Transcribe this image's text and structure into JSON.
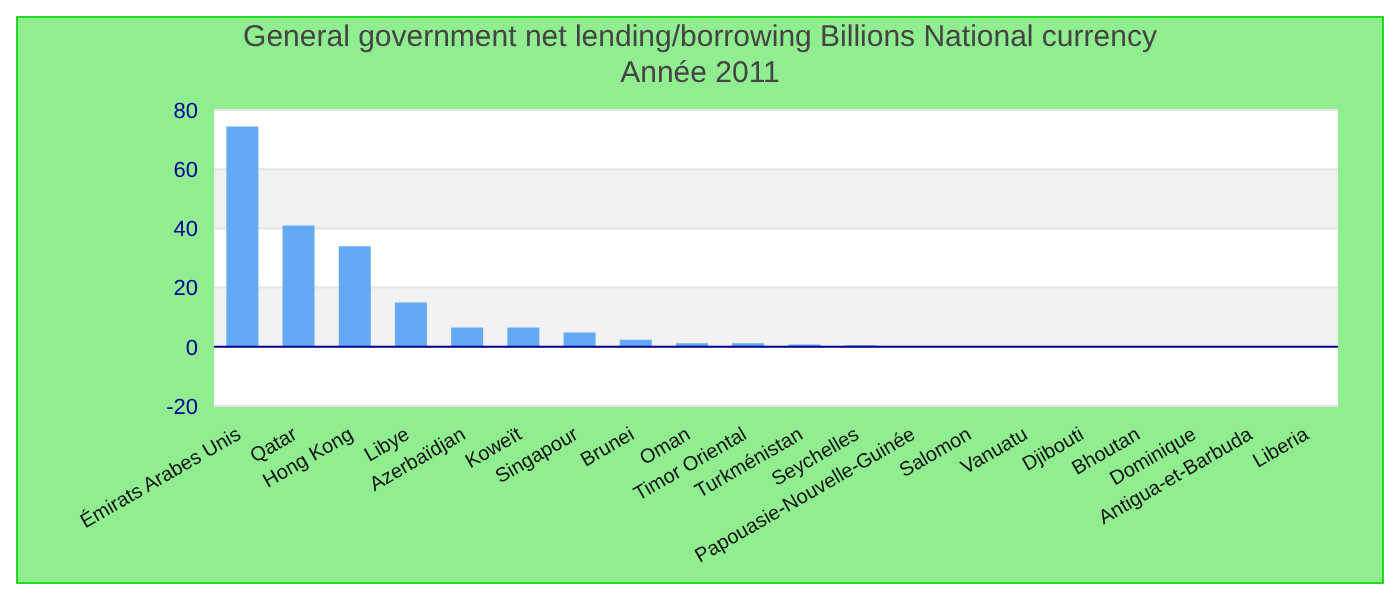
{
  "chart_data": {
    "type": "bar",
    "title": "General government net lending/borrowing Billions National currency",
    "subtitle": "Année 2011",
    "categories": [
      "Émirats Arabes Unis",
      "Qatar",
      "Hong Kong",
      "Libye",
      "Azerbaïdjan",
      "Koweït",
      "Singapour",
      "Brunei",
      "Oman",
      "Timor Oriental",
      "Turkménistan",
      "Seychelles",
      "Papouasie-Nouvelle-Guinée",
      "Salomon",
      "Vanuatu",
      "Djibouti",
      "Bhoutan",
      "Dominique",
      "Antigua-et-Barbuda",
      "Liberia"
    ],
    "values": [
      74.4,
      41,
      34,
      15,
      6.5,
      6.5,
      4.8,
      2.4,
      1.2,
      1.2,
      0.8,
      0.5,
      0,
      0,
      0,
      0,
      0,
      0,
      0,
      0
    ],
    "color": "#63a9f4",
    "ylim": [
      -20,
      80
    ],
    "yticks": [
      -20,
      0,
      20,
      40,
      60,
      80
    ],
    "grid": "y",
    "ref_lines": [
      {
        "axis": "y",
        "value": 0,
        "color": "#000099"
      }
    ]
  }
}
